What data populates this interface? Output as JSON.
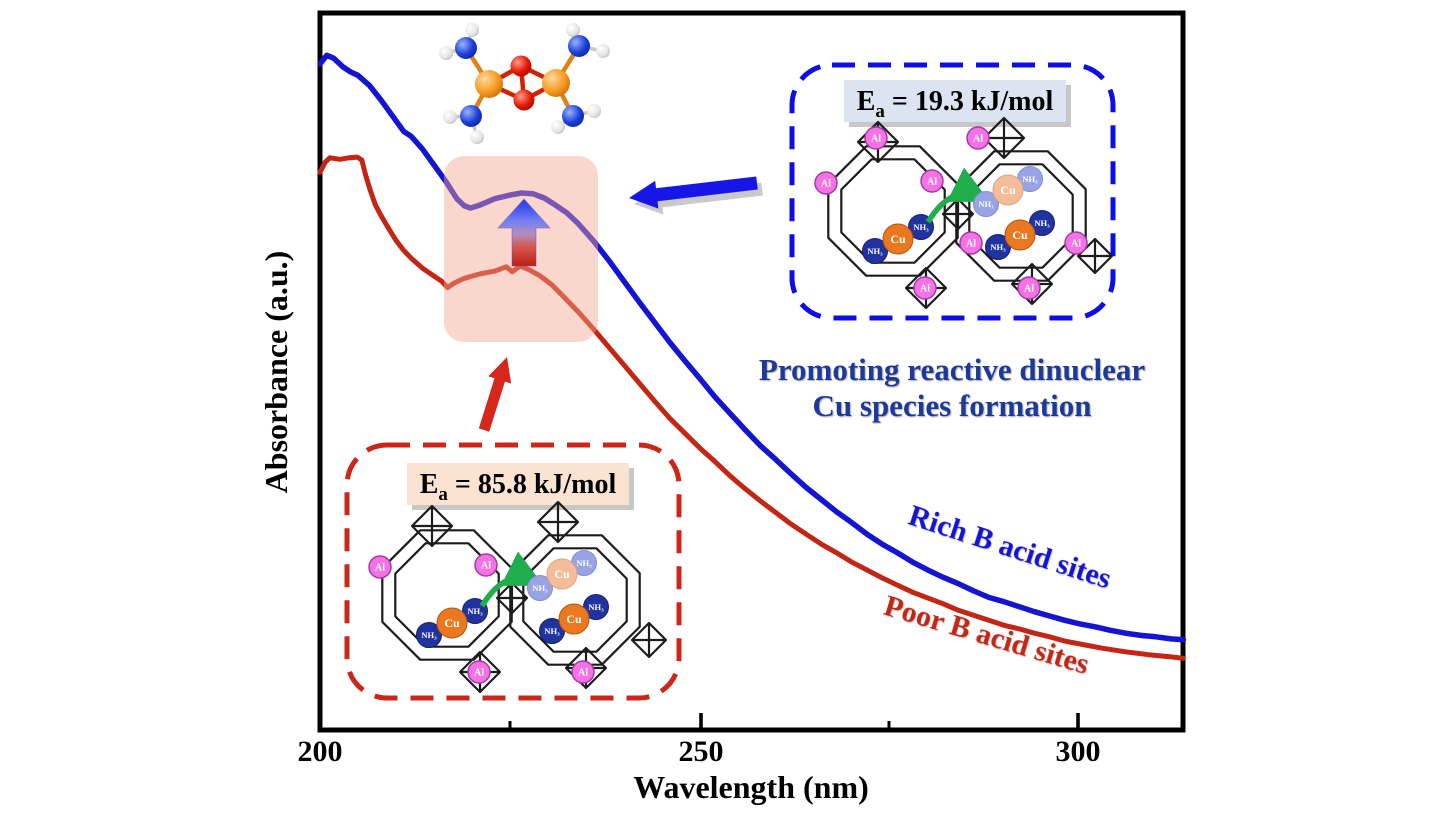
{
  "axes": {
    "x_label": "Wavelength (nm)",
    "y_label": "Absorbance (a.u.)",
    "x_ticks": [
      {
        "value": 200,
        "label": "200"
      },
      {
        "value": 250,
        "label": "250"
      },
      {
        "value": 300,
        "label": "300"
      }
    ]
  },
  "annotations": {
    "ea_rich": {
      "symbol": "E",
      "subscript": "a",
      "value": " = 19.3 kJ/mol"
    },
    "ea_poor": {
      "symbol": "E",
      "subscript": "a",
      "value": " = 85.8 kJ/mol"
    },
    "promoting_line1": "Promoting reactive dinuclear",
    "promoting_line2": "Cu species formation"
  },
  "atom_labels": {
    "al": "Al",
    "cu": "Cu",
    "nh3": "NH₃"
  },
  "colors": {
    "rich_blue": "#1414d2",
    "poor_red": "#c32615",
    "dash_blue": "#0d0de8",
    "dash_red": "#cd2618",
    "caption_blue": "#1d3a9b",
    "highlight_fill": "rgba(243,167,141,0.45)",
    "ea_rich_bg": "#dce3f1",
    "ea_poor_bg": "#fbe3d2",
    "al_pink": "#f472e4",
    "cu_orange": "#e9781e",
    "nh3_blue": "#20339f",
    "green_arrow": "#1fae4b"
  },
  "chart_data": {
    "type": "line",
    "title": "",
    "xlabel": "Wavelength (nm)",
    "ylabel": "Absorbance (a.u.)",
    "xlim": [
      200,
      313.6
    ],
    "ylim": [
      0,
      1
    ],
    "x_major_ticks": [
      200,
      250,
      300
    ],
    "x_minor_ticks": [
      225,
      275
    ],
    "grid": false,
    "y_units": "arbitrary units (normalized 0-1, no y ticks shown)",
    "series": [
      {
        "name": "Rich B acid sites",
        "color": "#1414d2",
        "x": [
          200,
          200.9,
          201.8,
          203,
          204,
          205,
          206.5,
          208,
          209.5,
          211,
          212,
          213.5,
          215,
          216.5,
          218,
          219,
          219.8,
          221,
          223,
          225,
          226.5,
          228,
          229.5,
          231,
          232.5,
          234,
          236,
          238,
          240,
          242,
          244,
          246,
          248,
          250,
          252,
          254,
          256,
          258,
          260,
          262,
          264,
          266,
          268,
          270,
          272,
          274,
          276,
          278,
          280,
          282,
          284,
          286,
          288,
          290,
          292,
          294,
          296,
          298,
          300,
          302,
          304,
          306,
          308,
          310,
          312,
          313.6
        ],
        "y": [
          0.929,
          0.941,
          0.937,
          0.925,
          0.918,
          0.913,
          0.899,
          0.879,
          0.857,
          0.835,
          0.828,
          0.81,
          0.788,
          0.766,
          0.741,
          0.731,
          0.728,
          0.732,
          0.741,
          0.746,
          0.749,
          0.748,
          0.742,
          0.732,
          0.721,
          0.706,
          0.682,
          0.655,
          0.626,
          0.597,
          0.569,
          0.541,
          0.515,
          0.49,
          0.464,
          0.441,
          0.418,
          0.396,
          0.377,
          0.357,
          0.338,
          0.321,
          0.304,
          0.289,
          0.273,
          0.259,
          0.247,
          0.234,
          0.223,
          0.213,
          0.204,
          0.194,
          0.185,
          0.179,
          0.172,
          0.165,
          0.159,
          0.153,
          0.148,
          0.144,
          0.139,
          0.135,
          0.132,
          0.13,
          0.127,
          0.126
        ]
      },
      {
        "name": "Poor B acid sites",
        "color": "#c32615",
        "x": [
          200,
          200.7,
          201.3,
          202.6,
          203.8,
          204.9,
          205.5,
          206,
          206.6,
          207.3,
          208,
          209,
          210,
          211,
          212,
          213.5,
          215,
          216,
          216.8,
          217.6,
          219,
          221,
          223,
          224.5,
          225.3,
          226.3,
          227.5,
          229,
          230.5,
          232,
          234,
          236,
          238,
          240,
          242,
          244,
          246,
          248,
          250,
          252,
          254,
          256,
          258,
          260,
          262,
          264,
          266,
          268,
          270,
          272,
          274,
          276,
          278,
          280,
          282,
          284,
          286,
          288,
          290,
          292,
          294,
          296,
          298,
          300,
          303,
          306,
          309,
          312,
          313.6
        ],
        "y": [
          0.778,
          0.792,
          0.798,
          0.796,
          0.798,
          0.799,
          0.795,
          0.774,
          0.753,
          0.732,
          0.718,
          0.7,
          0.683,
          0.669,
          0.658,
          0.644,
          0.633,
          0.626,
          0.617,
          0.623,
          0.63,
          0.636,
          0.64,
          0.646,
          0.639,
          0.647,
          0.642,
          0.633,
          0.621,
          0.605,
          0.583,
          0.559,
          0.534,
          0.509,
          0.484,
          0.459,
          0.435,
          0.414,
          0.393,
          0.374,
          0.354,
          0.336,
          0.319,
          0.303,
          0.287,
          0.273,
          0.259,
          0.247,
          0.234,
          0.223,
          0.212,
          0.202,
          0.192,
          0.184,
          0.176,
          0.167,
          0.16,
          0.153,
          0.146,
          0.141,
          0.135,
          0.13,
          0.124,
          0.12,
          0.114,
          0.109,
          0.105,
          0.102,
          0.1
        ]
      }
    ]
  }
}
